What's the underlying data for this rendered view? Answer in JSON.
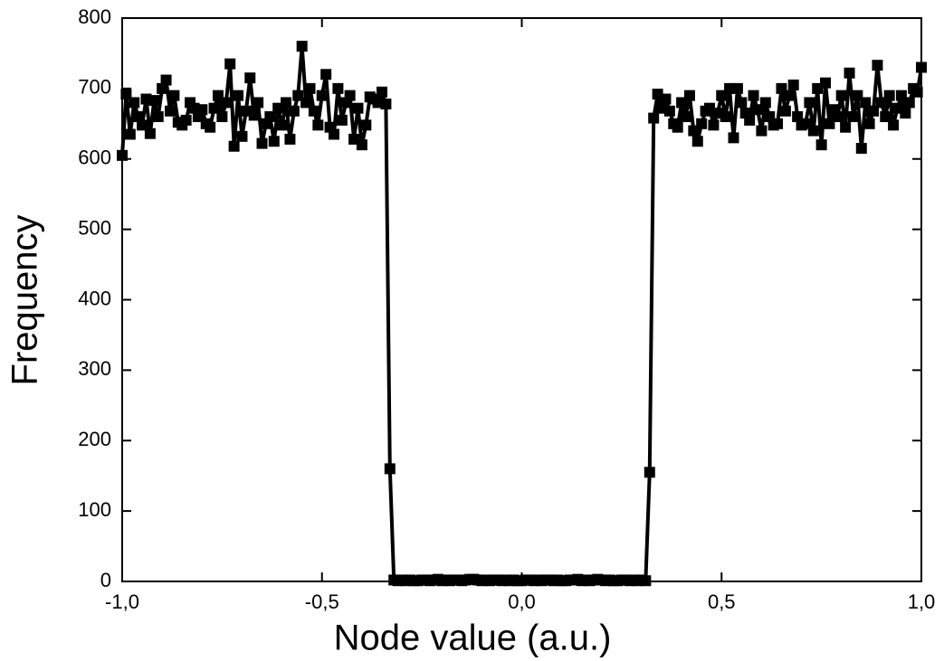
{
  "chart_data": {
    "type": "line",
    "markers": "square",
    "color": "#000000",
    "xlabel": "Node value (a.u.)",
    "ylabel": "Frequency",
    "xlim": [
      -1,
      1
    ],
    "ylim": [
      0,
      800
    ],
    "xticks": [
      {
        "value": -1,
        "label": "-1,0"
      },
      {
        "value": -0.5,
        "label": "-0,5"
      },
      {
        "value": 0,
        "label": "0,0"
      },
      {
        "value": 0.5,
        "label": "0,5"
      },
      {
        "value": 1,
        "label": "1,0"
      }
    ],
    "yticks": [
      0,
      100,
      200,
      300,
      400,
      500,
      600,
      700,
      800
    ],
    "x": [
      -1,
      -0.99,
      -0.98,
      -0.97,
      -0.96,
      -0.95,
      -0.94,
      -0.93,
      -0.92,
      -0.91,
      -0.9,
      -0.89,
      -0.88,
      -0.87,
      -0.86,
      -0.85,
      -0.84,
      -0.83,
      -0.82,
      -0.81,
      -0.8,
      -0.79,
      -0.78,
      -0.77,
      -0.76,
      -0.75,
      -0.74,
      -0.73,
      -0.72,
      -0.71,
      -0.7,
      -0.69,
      -0.68,
      -0.67,
      -0.66,
      -0.65,
      -0.64,
      -0.63,
      -0.62,
      -0.61,
      -0.6,
      -0.59,
      -0.58,
      -0.57,
      -0.56,
      -0.55,
      -0.54,
      -0.53,
      -0.52,
      -0.51,
      -0.5,
      -0.49,
      -0.48,
      -0.47,
      -0.46,
      -0.45,
      -0.44,
      -0.43,
      -0.42,
      -0.41,
      -0.4,
      -0.39,
      -0.38,
      -0.37,
      -0.36,
      -0.35,
      -0.34,
      -0.33,
      -0.32,
      -0.31,
      -0.3,
      -0.29,
      -0.28,
      -0.27,
      -0.26,
      -0.25,
      -0.24,
      -0.23,
      -0.22,
      -0.21,
      -0.2,
      -0.19,
      -0.18,
      -0.17,
      -0.16,
      -0.15,
      -0.14,
      -0.13,
      -0.12,
      -0.11,
      -0.1,
      -0.09,
      -0.08,
      -0.07,
      -0.06,
      -0.05,
      -0.04,
      -0.03,
      -0.02,
      -0.01,
      0,
      0.01,
      0.02,
      0.03,
      0.04,
      0.05,
      0.06,
      0.07,
      0.08,
      0.09,
      0.1,
      0.11,
      0.12,
      0.13,
      0.14,
      0.15,
      0.16,
      0.17,
      0.18,
      0.19,
      0.2,
      0.21,
      0.22,
      0.23,
      0.24,
      0.25,
      0.26,
      0.27,
      0.28,
      0.29,
      0.3,
      0.31,
      0.32,
      0.33,
      0.34,
      0.35,
      0.36,
      0.37,
      0.38,
      0.39,
      0.4,
      0.41,
      0.42,
      0.43,
      0.44,
      0.45,
      0.46,
      0.47,
      0.48,
      0.49,
      0.5,
      0.51,
      0.52,
      0.53,
      0.54,
      0.55,
      0.56,
      0.57,
      0.58,
      0.59,
      0.6,
      0.61,
      0.62,
      0.63,
      0.64,
      0.65,
      0.66,
      0.67,
      0.68,
      0.69,
      0.7,
      0.71,
      0.72,
      0.73,
      0.74,
      0.75,
      0.76,
      0.77,
      0.78,
      0.79,
      0.8,
      0.81,
      0.82,
      0.83,
      0.84,
      0.85,
      0.86,
      0.87,
      0.88,
      0.89,
      0.9,
      0.91,
      0.92,
      0.93,
      0.94,
      0.95,
      0.96,
      0.97,
      0.98,
      0.99,
      1
    ],
    "values": [
      605,
      692,
      635,
      680,
      660,
      648,
      685,
      636,
      683,
      660,
      700,
      712,
      668,
      690,
      652,
      648,
      655,
      680,
      672,
      660,
      670,
      650,
      645,
      672,
      690,
      660,
      680,
      735,
      618,
      690,
      632,
      668,
      715,
      662,
      680,
      622,
      650,
      660,
      625,
      672,
      648,
      680,
      628,
      668,
      690,
      760,
      680,
      700,
      668,
      648,
      690,
      720,
      645,
      635,
      700,
      655,
      680,
      690,
      628,
      672,
      620,
      648,
      688,
      685,
      680,
      695,
      678,
      160,
      2,
      1,
      2,
      1,
      2,
      1,
      1,
      2,
      2,
      1,
      2,
      3,
      1,
      2,
      1,
      2,
      2,
      1,
      2,
      3,
      3,
      2,
      1,
      2,
      1,
      2,
      2,
      1,
      2,
      1,
      2,
      1,
      1,
      2,
      2,
      1,
      2,
      1,
      2,
      2,
      1,
      2,
      1,
      1,
      2,
      2,
      3,
      1,
      2,
      1,
      2,
      3,
      2,
      1,
      2,
      1,
      1,
      2,
      2,
      1,
      2,
      1,
      2,
      1,
      155,
      658,
      692,
      672,
      685,
      668,
      650,
      645,
      680,
      660,
      690,
      640,
      625,
      650,
      668,
      672,
      648,
      665,
      690,
      660,
      700,
      630,
      700,
      680,
      665,
      655,
      690,
      670,
      640,
      680,
      660,
      648,
      650,
      700,
      668,
      690,
      705,
      660,
      648,
      650,
      680,
      640,
      700,
      620,
      708,
      650,
      670,
      660,
      690,
      645,
      722,
      660,
      690,
      615,
      680,
      650,
      668,
      733,
      680,
      660,
      690,
      648,
      672,
      690,
      665,
      680,
      700,
      695,
      730
    ]
  }
}
